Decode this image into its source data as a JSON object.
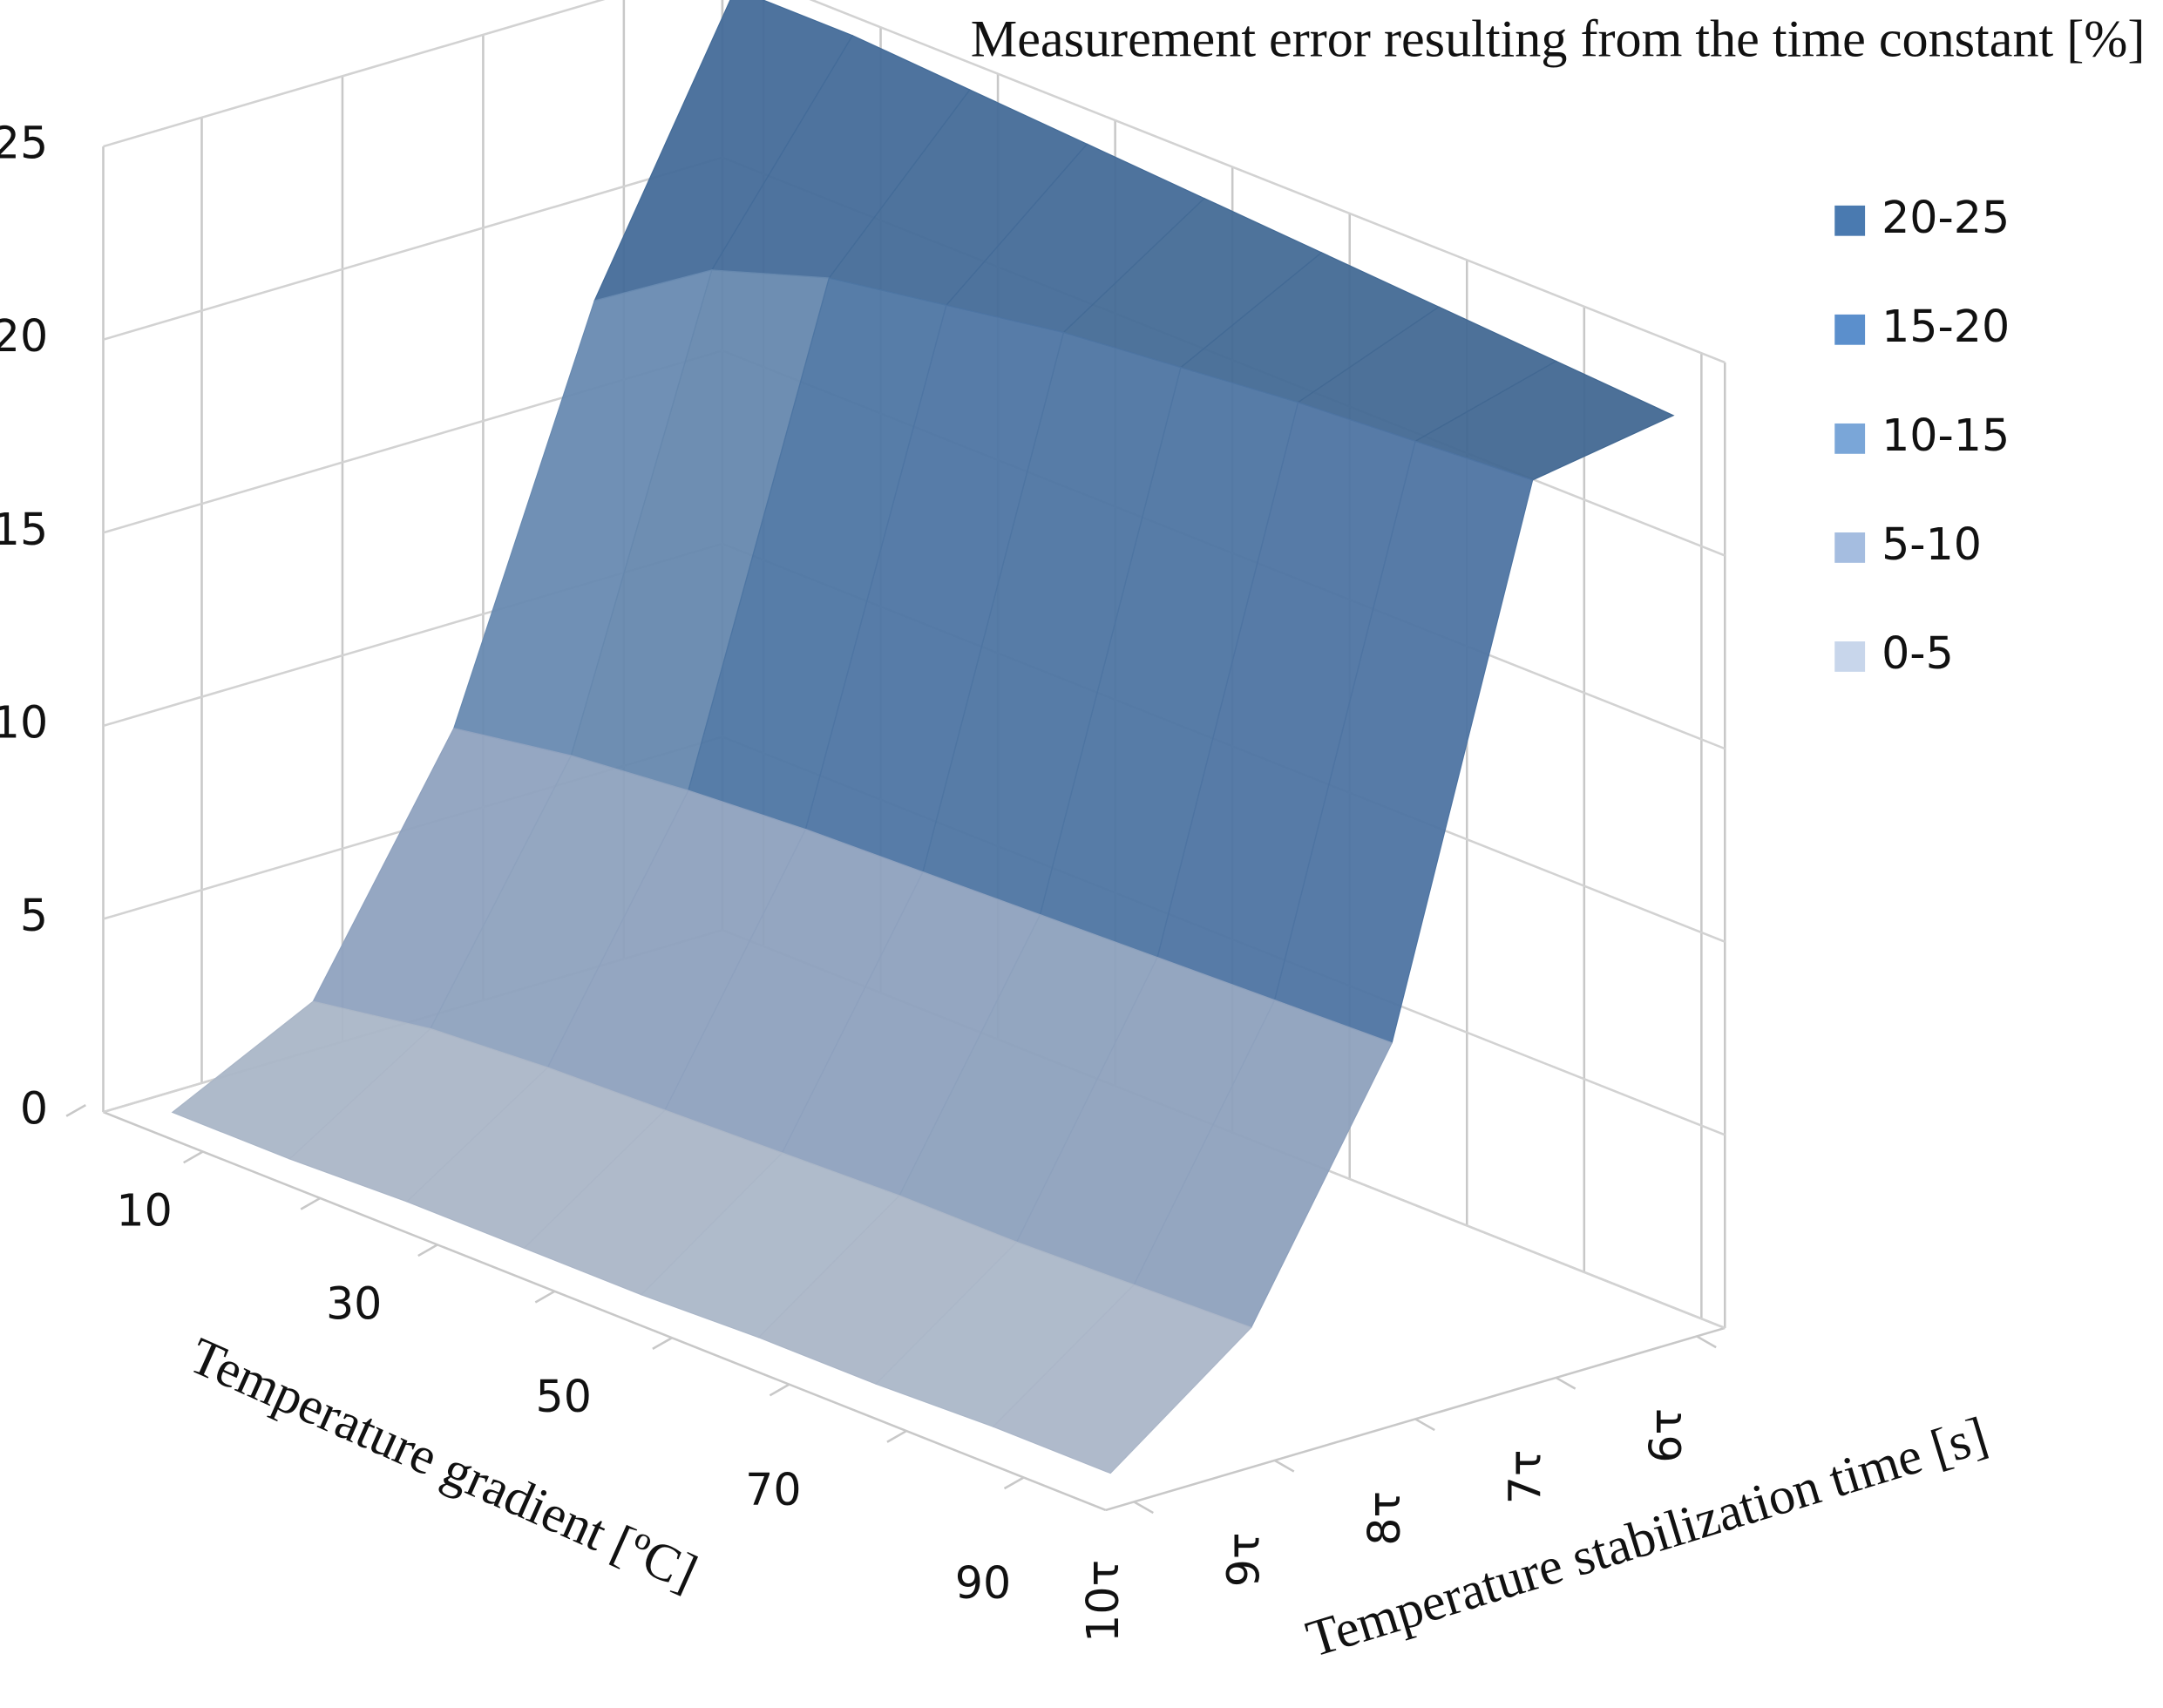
{
  "chart_data": {
    "type": "surface",
    "title": "Measurement error resulting from the time constant [%]",
    "x_label": "Temperature gradient [ºC]",
    "depth_label": "Temperature stabilization time [s]",
    "x_categories": [
      "10",
      null,
      "30",
      null,
      "50",
      null,
      "70",
      null,
      "90"
    ],
    "depth_categories": [
      "10τ",
      "9τ",
      "8τ",
      "7τ",
      "6τ"
    ],
    "z": [
      [
        0.2,
        0.2,
        0.3,
        0.3,
        0.3,
        0.4,
        0.4,
        0.5,
        0.5
      ],
      [
        2,
        2.5,
        2.7,
        2.8,
        2.9,
        3,
        3,
        3.1,
        3.2
      ],
      [
        8,
        8.5,
        8.8,
        9,
        9.1,
        9.2,
        9.3,
        9.4,
        9.5
      ],
      [
        18,
        20,
        21,
        21.5,
        22,
        22.3,
        22.6,
        22.8,
        23
      ],
      [
        25,
        25,
        24.8,
        24.6,
        24.4,
        24.2,
        24,
        23.8,
        23.6
      ]
    ],
    "zlim": [
      0,
      25
    ],
    "zticks": [
      0,
      5,
      10,
      15,
      20,
      25
    ],
    "legend": [
      {
        "name": "20-25",
        "color": "#4a7ab0"
      },
      {
        "name": "15-20",
        "color": "#5b8fcc"
      },
      {
        "name": "10-15",
        "color": "#7aa6d8"
      },
      {
        "name": "5-10",
        "color": "#a5bde0"
      },
      {
        "name": "0-5",
        "color": "#c8d6eb"
      }
    ]
  }
}
